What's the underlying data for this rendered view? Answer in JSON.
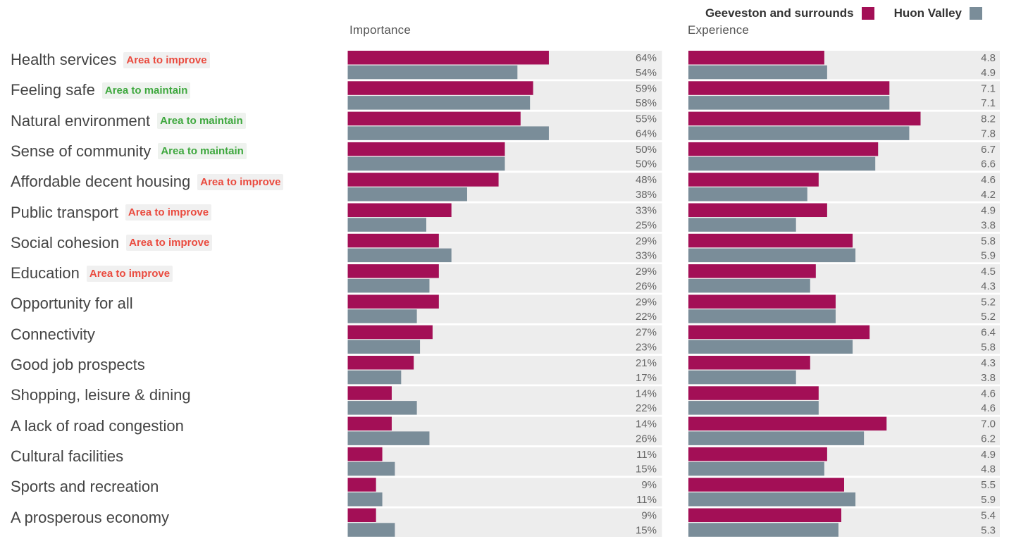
{
  "legend": {
    "series_a": "Geeveston and surrounds",
    "series_b": "Huon Valley"
  },
  "colors": {
    "series_a": "#a30f56",
    "series_b": "#7a8d99",
    "track": "#ededed",
    "tag_improve": "#ea4b3f",
    "tag_maintain": "#3ea83e"
  },
  "rows": [
    {
      "name": "Health services",
      "tag": "Area to improve",
      "tag_type": "improve"
    },
    {
      "name": "Feeling safe",
      "tag": "Area to maintain",
      "tag_type": "maintain"
    },
    {
      "name": "Natural environment",
      "tag": "Area to maintain",
      "tag_type": "maintain"
    },
    {
      "name": "Sense of community",
      "tag": "Area to maintain",
      "tag_type": "maintain"
    },
    {
      "name": "Affordable decent housing",
      "tag": "Area to improve",
      "tag_type": "improve"
    },
    {
      "name": "Public transport",
      "tag": "Area to improve",
      "tag_type": "improve"
    },
    {
      "name": "Social cohesion",
      "tag": "Area to improve",
      "tag_type": "improve"
    },
    {
      "name": "Education",
      "tag": "Area to improve",
      "tag_type": "improve"
    },
    {
      "name": "Opportunity for all",
      "tag": "",
      "tag_type": ""
    },
    {
      "name": "Connectivity",
      "tag": "",
      "tag_type": ""
    },
    {
      "name": "Good job prospects",
      "tag": "",
      "tag_type": ""
    },
    {
      "name": "Shopping, leisure & dining",
      "tag": "",
      "tag_type": ""
    },
    {
      "name": "A lack of road congestion",
      "tag": "",
      "tag_type": ""
    },
    {
      "name": "Cultural facilities",
      "tag": "",
      "tag_type": ""
    },
    {
      "name": "Sports and recreation",
      "tag": "",
      "tag_type": ""
    },
    {
      "name": "A prosperous economy",
      "tag": "",
      "tag_type": ""
    }
  ],
  "chart_data": [
    {
      "type": "bar",
      "title": "Importance",
      "orientation": "horizontal",
      "unit": "%",
      "xlim": [
        0,
        100
      ],
      "categories": [
        "Health services",
        "Feeling safe",
        "Natural environment",
        "Sense of community",
        "Affordable decent housing",
        "Public transport",
        "Social cohesion",
        "Education",
        "Opportunity for all",
        "Connectivity",
        "Good job prospects",
        "Shopping, leisure & dining",
        "A lack of road congestion",
        "Cultural facilities",
        "Sports and recreation",
        "A prosperous economy"
      ],
      "series": [
        {
          "name": "Geeveston and surrounds",
          "values": [
            64,
            59,
            55,
            50,
            48,
            33,
            29,
            29,
            29,
            27,
            21,
            14,
            14,
            11,
            9,
            9
          ]
        },
        {
          "name": "Huon Valley",
          "values": [
            54,
            58,
            64,
            50,
            38,
            25,
            33,
            26,
            22,
            23,
            17,
            22,
            26,
            15,
            11,
            15
          ]
        }
      ]
    },
    {
      "type": "bar",
      "title": "Experience",
      "orientation": "horizontal",
      "decimals": 1,
      "xlim": [
        0,
        11
      ],
      "categories": [
        "Health services",
        "Feeling safe",
        "Natural environment",
        "Sense of community",
        "Affordable decent housing",
        "Public transport",
        "Social cohesion",
        "Education",
        "Opportunity for all",
        "Connectivity",
        "Good job prospects",
        "Shopping, leisure & dining",
        "A lack of road congestion",
        "Cultural facilities",
        "Sports and recreation",
        "A prosperous economy"
      ],
      "series": [
        {
          "name": "Geeveston and surrounds",
          "values": [
            4.8,
            7.1,
            8.2,
            6.7,
            4.6,
            4.9,
            5.8,
            4.5,
            5.2,
            6.4,
            4.3,
            4.6,
            7.0,
            4.9,
            5.5,
            5.4
          ]
        },
        {
          "name": "Huon Valley",
          "values": [
            4.9,
            7.1,
            7.8,
            6.6,
            4.2,
            3.8,
            5.9,
            4.3,
            5.2,
            5.8,
            3.8,
            4.6,
            6.2,
            4.8,
            5.9,
            5.3
          ]
        }
      ]
    }
  ]
}
